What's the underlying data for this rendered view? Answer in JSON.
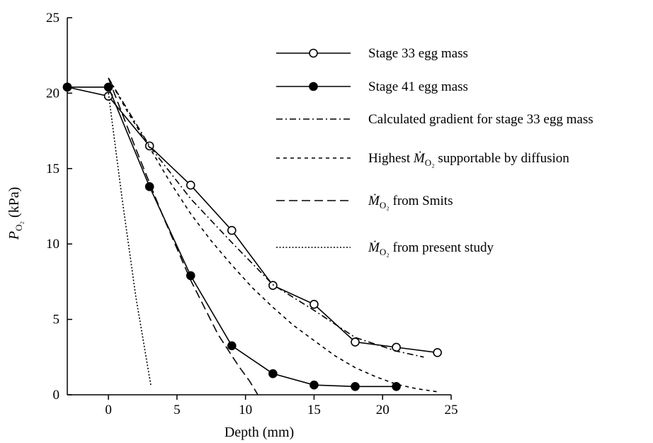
{
  "chart_data": {
    "type": "line",
    "xlabel": "Depth  (mm)",
    "ylabel": {
      "main": "P",
      "sub": "O2",
      "unit": " (kPa)"
    },
    "xlim": [
      -3,
      25
    ],
    "ylim": [
      0,
      25
    ],
    "xticks": [
      "0",
      "5",
      "10",
      "15",
      "20",
      "25"
    ],
    "yticks": [
      "0",
      "5",
      "10",
      "15",
      "20",
      "25"
    ],
    "legend_position": "top-right",
    "series": [
      {
        "name": "Stage 33 egg mass",
        "style": "solid-open-marker",
        "color": "#000000",
        "x": [
          -3,
          0,
          3,
          6,
          9,
          12,
          15,
          18,
          21,
          24
        ],
        "y": [
          20.4,
          19.8,
          16.5,
          13.9,
          10.9,
          7.25,
          6.0,
          3.5,
          3.15,
          2.8
        ]
      },
      {
        "name": "Stage 41 egg mass",
        "style": "solid-filled-marker",
        "color": "#000000",
        "x": [
          -3,
          0,
          3,
          6,
          9,
          12,
          15,
          18,
          21
        ],
        "y": [
          20.4,
          20.4,
          13.8,
          7.9,
          3.25,
          1.4,
          0.65,
          0.55,
          0.55
        ]
      },
      {
        "name": "Calculated gradient for stage 33 egg mass",
        "style": "dash-dot",
        "color": "#000000",
        "x": [
          0,
          3,
          6,
          9,
          12,
          15,
          18,
          21,
          23
        ],
        "y": [
          21.0,
          16.5,
          13.0,
          10.1,
          7.3,
          5.6,
          3.8,
          2.9,
          2.5
        ]
      },
      {
        "name": "Highest",
        "name_tail": "supportable by diffusion",
        "style": "short-dash",
        "color": "#000000",
        "x": [
          0,
          1.5,
          3,
          4.5,
          6,
          7.5,
          9,
          10.5,
          12,
          13.5,
          15,
          16.5,
          18,
          19.5,
          21,
          22.5,
          24
        ],
        "y": [
          21.0,
          18.6,
          16.4,
          14.1,
          12.0,
          10.2,
          8.6,
          7.1,
          5.8,
          4.6,
          3.6,
          2.6,
          1.8,
          1.2,
          0.7,
          0.4,
          0.2
        ]
      },
      {
        "name": "from Smits",
        "style": "long-dash",
        "color": "#000000",
        "x": [
          0,
          2,
          4,
          6,
          8,
          9.5,
          10.3,
          10.9
        ],
        "y": [
          21.0,
          16.3,
          11.8,
          7.6,
          4.0,
          1.9,
          0.9,
          0.0
        ]
      },
      {
        "name": "from present study",
        "style": "dotted",
        "color": "#000000",
        "x": [
          0,
          1,
          2,
          3.1
        ],
        "y": [
          20.0,
          13.0,
          6.5,
          0.6
        ]
      }
    ],
    "legend_symbol": {
      "main": "M",
      "sub": "O2"
    }
  }
}
